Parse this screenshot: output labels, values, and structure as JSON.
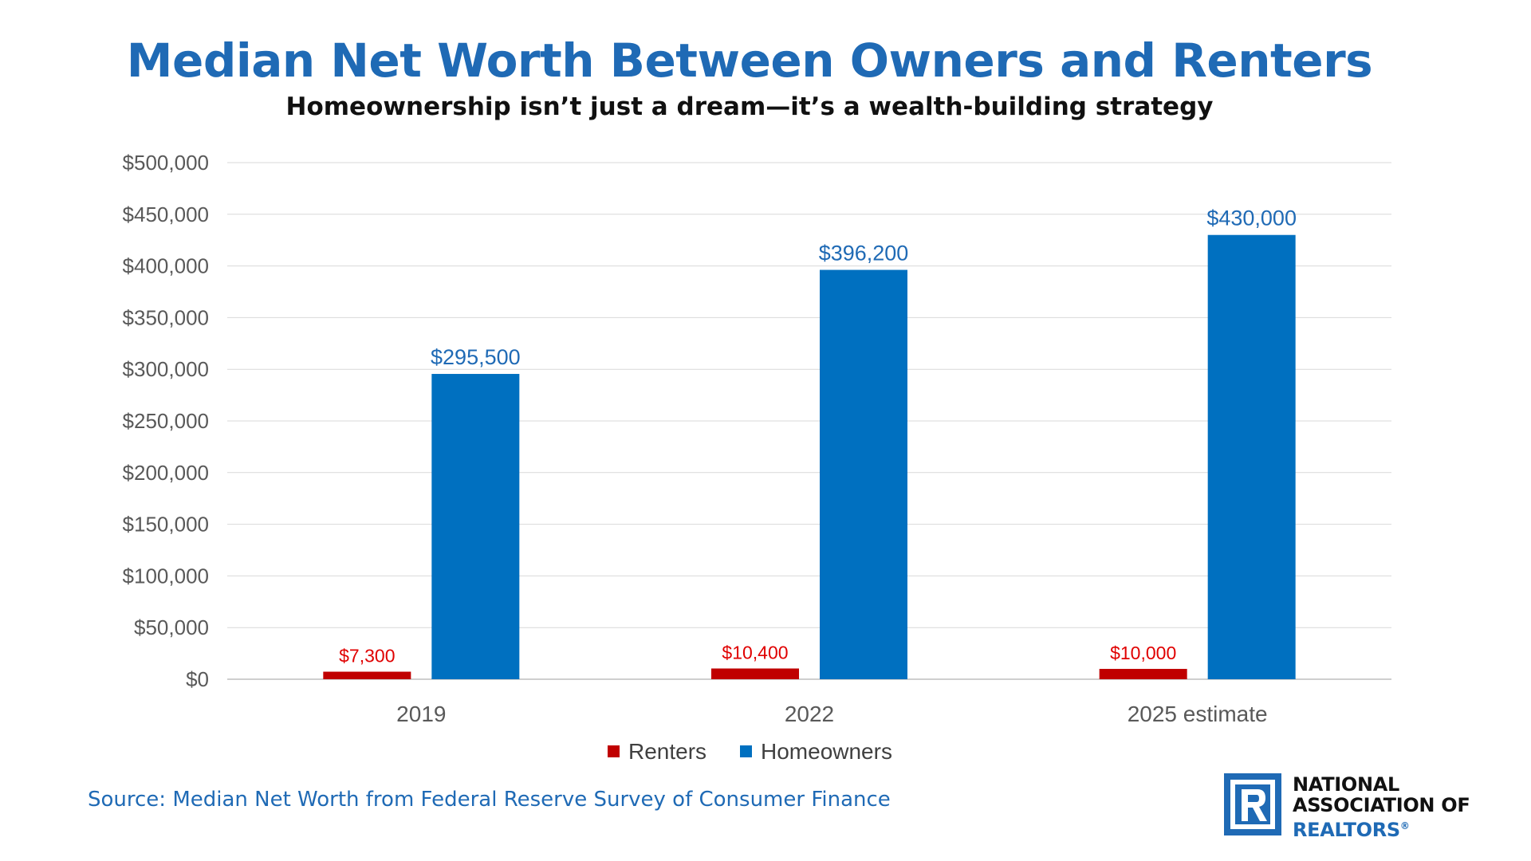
{
  "header": {
    "title": "Median Net Worth Between Owners and Renters",
    "subtitle": "Homeownership isn’t just a dream—it’s a wealth-building strategy"
  },
  "footer": {
    "source": "Source: Median Net Worth from Federal Reserve Survey of Consumer Finance"
  },
  "logo": {
    "line1": "NATIONAL",
    "line2": "ASSOCIATION OF",
    "line3": "REALTORS",
    "registered": "®",
    "mark_letter": "R"
  },
  "chart_data": {
    "type": "bar",
    "title": "Median Net Worth Between Owners and Renters",
    "subtitle": "Homeownership isn’t just a dream—it’s a wealth-building strategy",
    "categories": [
      "2019",
      "2022",
      "2025 estimate"
    ],
    "series": [
      {
        "name": "Renters",
        "color": "#c00000",
        "values": [
          7300,
          10400,
          10000
        ],
        "labels": [
          "$7,300",
          "$10,400",
          "$10,000"
        ]
      },
      {
        "name": "Homeowners",
        "color": "#0070c0",
        "values": [
          295500,
          396200,
          430000
        ],
        "labels": [
          "$295,500",
          "$396,200",
          "$430,000"
        ]
      }
    ],
    "ylim": [
      0,
      500000
    ],
    "yticks": [
      0,
      50000,
      100000,
      150000,
      200000,
      250000,
      300000,
      350000,
      400000,
      450000,
      500000
    ],
    "ytick_labels": [
      "$0",
      "$50,000",
      "$100,000",
      "$150,000",
      "$200,000",
      "$250,000",
      "$300,000",
      "$350,000",
      "$400,000",
      "$450,000",
      "$500,000"
    ],
    "xlabel": "",
    "ylabel": "",
    "grid": true,
    "legend": "bottom-center"
  }
}
